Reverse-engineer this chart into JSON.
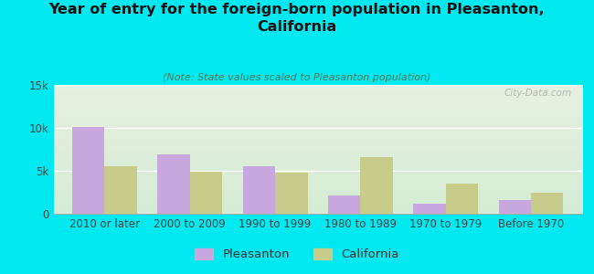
{
  "title": "Year of entry for the foreign-born population in Pleasanton,\nCalifornia",
  "subtitle": "(Note: State values scaled to Pleasanton population)",
  "categories": [
    "2010 or later",
    "2000 to 2009",
    "1990 to 1999",
    "1980 to 1989",
    "1970 to 1979",
    "Before 1970"
  ],
  "pleasanton_values": [
    10100,
    6900,
    5500,
    2100,
    1200,
    1600
  ],
  "california_values": [
    5500,
    4900,
    4800,
    6600,
    3500,
    2500
  ],
  "pleasanton_color": "#c9a8e0",
  "california_color": "#c8cc8a",
  "background_color": "#00e8f0",
  "ylim": [
    0,
    15000
  ],
  "yticks": [
    0,
    5000,
    10000,
    15000
  ],
  "ytick_labels": [
    "0",
    "5k",
    "10k",
    "15k"
  ],
  "bar_width": 0.38,
  "title_fontsize": 11.5,
  "subtitle_fontsize": 8,
  "tick_fontsize": 8.5,
  "legend_fontsize": 9.5,
  "watermark": "City-Data.com"
}
